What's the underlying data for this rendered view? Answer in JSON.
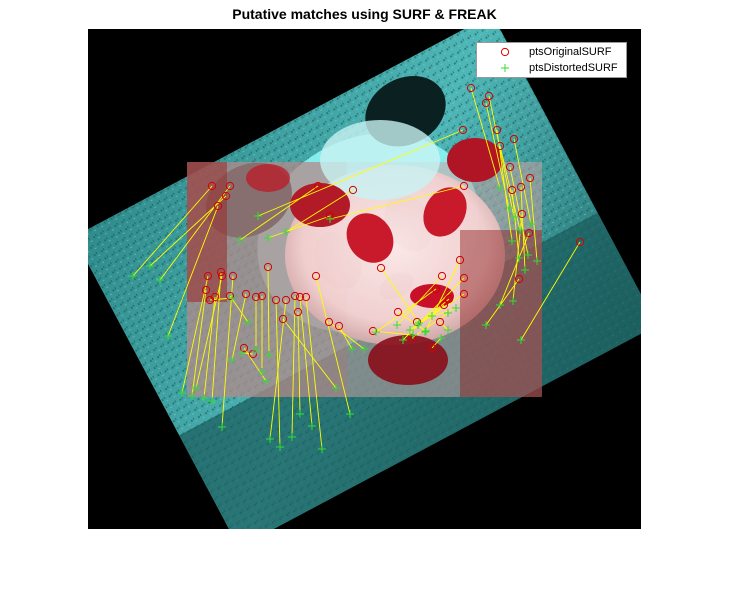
{
  "figure": {
    "title": "Putative matches using SURF & FREAK"
  },
  "legend": {
    "original": {
      "label": "ptsOriginalSURF",
      "marker": "o",
      "color": "#d40000"
    },
    "distorted": {
      "label": "ptsDistortedSURF",
      "marker": "+",
      "color": "#33dd33"
    }
  },
  "colors": {
    "match_line": "#ffff00",
    "original_channel": "#ff0000",
    "distorted_channel": "#00ffff",
    "background": "#000000"
  },
  "matches": [
    [
      212,
      186,
      133,
      276
    ],
    [
      226,
      196,
      150,
      266
    ],
    [
      230,
      186,
      160,
      280
    ],
    [
      218,
      206,
      168,
      336
    ],
    [
      208,
      276,
      182,
      393
    ],
    [
      206,
      290,
      192,
      396
    ],
    [
      222,
      276,
      196,
      388
    ],
    [
      215,
      297,
      204,
      398
    ],
    [
      221,
      272,
      212,
      401
    ],
    [
      233,
      276,
      222,
      427
    ],
    [
      210,
      300,
      232,
      298
    ],
    [
      230,
      296,
      248,
      322
    ],
    [
      256,
      297,
      256,
      350
    ],
    [
      262,
      296,
      262,
      372
    ],
    [
      276,
      300,
      280,
      447
    ],
    [
      295,
      296,
      292,
      437
    ],
    [
      286,
      300,
      270,
      439
    ],
    [
      298,
      312,
      300,
      414
    ],
    [
      300,
      297,
      312,
      426
    ],
    [
      306,
      297,
      322,
      449
    ],
    [
      283,
      319,
      336,
      388
    ],
    [
      316,
      276,
      350,
      414
    ],
    [
      329,
      322,
      364,
      349
    ],
    [
      339,
      326,
      352,
      349
    ],
    [
      318,
      186,
      240,
      240
    ],
    [
      330,
      216,
      268,
      238
    ],
    [
      353,
      190,
      286,
      232
    ],
    [
      464,
      186,
      330,
      219
    ],
    [
      463,
      130,
      258,
      216
    ],
    [
      471,
      88,
      500,
      188
    ],
    [
      486,
      103,
      509,
      208
    ],
    [
      489,
      96,
      514,
      217
    ],
    [
      497,
      130,
      512,
      241
    ],
    [
      500,
      146,
      520,
      230
    ],
    [
      510,
      167,
      528,
      255
    ],
    [
      514,
      139,
      531,
      224
    ],
    [
      512,
      190,
      519,
      258
    ],
    [
      521,
      187,
      525,
      270
    ],
    [
      530,
      178,
      537,
      261
    ],
    [
      522,
      214,
      513,
      301
    ],
    [
      529,
      233,
      500,
      305
    ],
    [
      519,
      279,
      486,
      325
    ],
    [
      580,
      242,
      521,
      340
    ],
    [
      460,
      260,
      425,
      332
    ],
    [
      464,
      278,
      403,
      340
    ],
    [
      464,
      294,
      410,
      330
    ],
    [
      449,
      299,
      418,
      325
    ],
    [
      444,
      305,
      432,
      316
    ],
    [
      442,
      276,
      397,
      325
    ],
    [
      436,
      289,
      376,
      332
    ],
    [
      398,
      312,
      426,
      331
    ],
    [
      373,
      331,
      413,
      335
    ],
    [
      412,
      338,
      448,
      313
    ],
    [
      417,
      322,
      456,
      308
    ],
    [
      432,
      348,
      441,
      338
    ],
    [
      440,
      322,
      448,
      330
    ],
    [
      381,
      268,
      419,
      323
    ],
    [
      246,
      294,
      232,
      360
    ],
    [
      268,
      267,
      269,
      355
    ],
    [
      244,
      348,
      266,
      381
    ],
    [
      253,
      354,
      242,
      353
    ]
  ]
}
